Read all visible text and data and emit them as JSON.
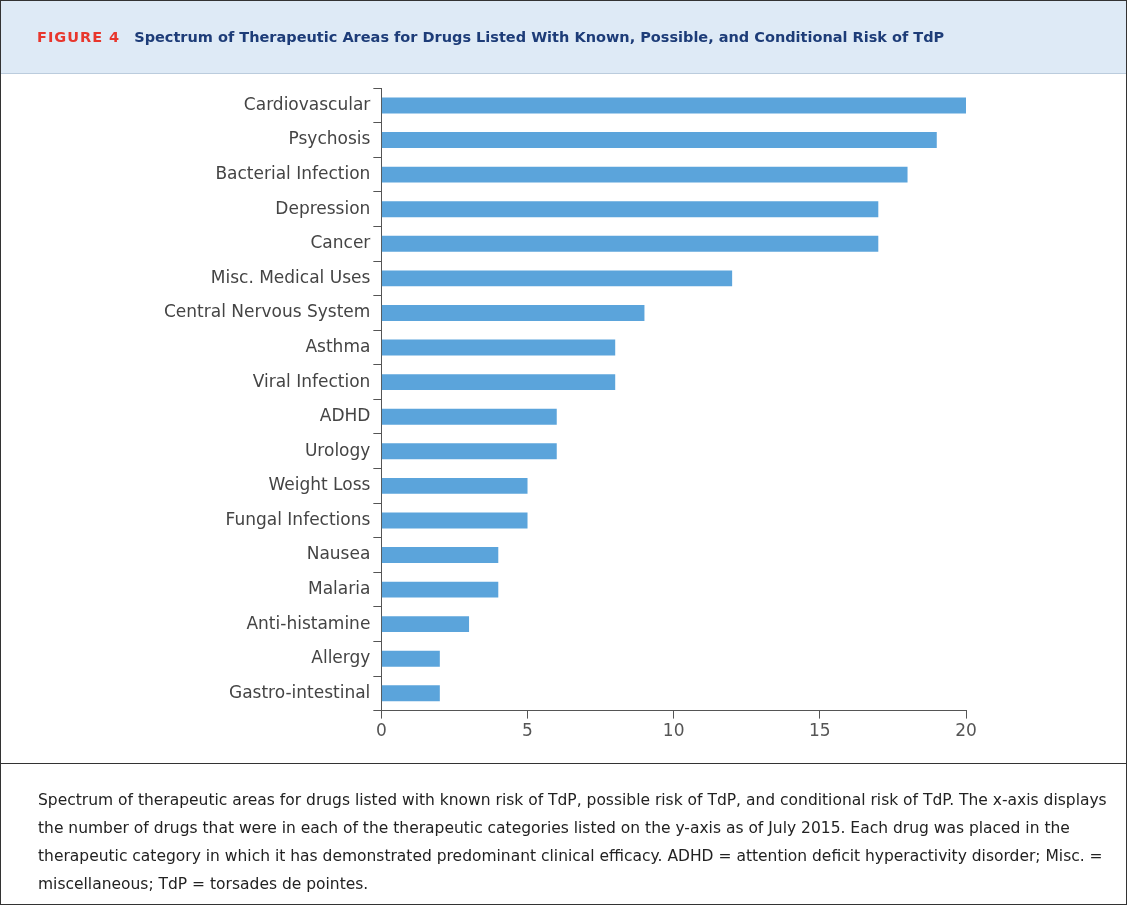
{
  "chart_data": {
    "type": "bar",
    "orientation": "horizontal",
    "title": "Spectrum of Therapeutic Areas for Drugs Listed With Known, Possible, and Conditional Risk of TdP",
    "categories": [
      "Cardiovascular",
      "Psychosis",
      "Bacterial Infection",
      "Depression",
      "Cancer",
      "Misc. Medical Uses",
      "Central Nervous System",
      "Asthma",
      "Viral Infection",
      "ADHD",
      "Urology",
      "Weight Loss",
      "Fungal Infections",
      "Nausea",
      "Malaria",
      "Anti-histamine",
      "Allergy",
      "Gastro-intestinal"
    ],
    "values": [
      20,
      19,
      18,
      17,
      17,
      12,
      9,
      8,
      8,
      6,
      6,
      5,
      5,
      4,
      4,
      3,
      2,
      2
    ],
    "color": "#5ba4db",
    "xlim": [
      0,
      20
    ],
    "xticks": [
      0,
      5,
      10,
      15,
      20
    ],
    "grid": false,
    "legend": false,
    "annotations": [
      "FIGURE 4",
      "Spectrum of therapeutic areas for drugs listed with known risk of TdP, possible risk of TdP, and conditional risk of TdP. The x-axis displays the number of drugs that were in each of the therapeutic categories listed on the y-axis as of July 2015. Each drug was placed in the therapeutic category in which it has demonstrated predominant clinical efficacy. ADHD = attention deficit hyperactivity disorder; Misc. = miscellaneous; TdP = torsades de pointes."
    ]
  }
}
